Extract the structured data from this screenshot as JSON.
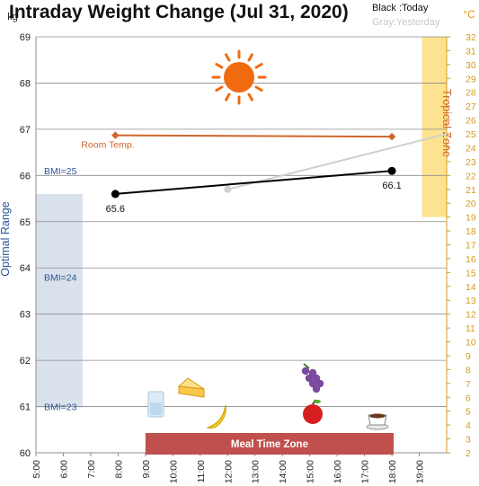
{
  "title": "Intraday Weight Change (Jul 31, 2020)",
  "legend": {
    "today": "Black :Today",
    "yesterday": "Gray:Yesterday"
  },
  "colors": {
    "axis_right": "#d89a1a",
    "room_temp": "#d0652a",
    "tropical": "#fde38f",
    "optimal": "#d9e2ec",
    "optimal_text": "#2d5597",
    "meal": "#c0504d",
    "today": "#000000",
    "yesterday": "#d0d0d0",
    "sun": "#f06a10"
  },
  "chart_data": {
    "type": "line",
    "title": "Intraday Weight Change (Jul 31, 2020)",
    "y_left": {
      "unit": "kg",
      "range": [
        60,
        69
      ],
      "ticks": [
        "60",
        "61",
        "62",
        "63",
        "64",
        "65",
        "66",
        "67",
        "68",
        "69"
      ]
    },
    "y_right": {
      "unit": "°C",
      "range": [
        2,
        32
      ],
      "ticks": [
        "2",
        "3",
        "4",
        "5",
        "6",
        "7",
        "8",
        "9",
        "10",
        "11",
        "12",
        "13",
        "14",
        "15",
        "16",
        "17",
        "18",
        "19",
        "20",
        "21",
        "22",
        "23",
        "24",
        "25",
        "26",
        "27",
        "28",
        "29",
        "30",
        "31",
        "32"
      ]
    },
    "x": {
      "range": [
        5,
        20
      ],
      "ticks": [
        "5:00",
        "6:00",
        "7:00",
        "8:00",
        "9:00",
        "10:00",
        "11:00",
        "12:00",
        "13:00",
        "14:00",
        "15:00",
        "16:00",
        "17:00",
        "18:00",
        "19:00"
      ]
    },
    "series": [
      {
        "name": "Today",
        "axis": "left",
        "points": [
          [
            7.9,
            65.6
          ],
          [
            18.0,
            66.1
          ]
        ],
        "labels": [
          "65.6",
          "66.1"
        ]
      },
      {
        "name": "Yesterday",
        "axis": "left",
        "points": [
          [
            12.0,
            65.7
          ],
          [
            20.0,
            66.9
          ]
        ]
      },
      {
        "name": "Room Temp.",
        "axis": "right",
        "points": [
          [
            7.9,
            24.9
          ],
          [
            18.0,
            24.8
          ]
        ]
      }
    ],
    "bands": {
      "tropical": {
        "label": "Tropical Zone",
        "x_range": [
          19.1,
          20.0
        ],
        "temp_range": [
          19,
          32
        ]
      },
      "optimal": {
        "label": "Optimal Range",
        "x_range": [
          5,
          6.7
        ],
        "weight_range": [
          60.98,
          65.6
        ]
      },
      "meal": {
        "label": "Meal Time Zone",
        "x_range": [
          9.0,
          18.0
        ]
      }
    },
    "bmi": [
      {
        "label": "BMI=25",
        "weight": 66.1
      },
      {
        "label": "BMI=24",
        "weight": 63.8
      },
      {
        "label": "BMI=23",
        "weight": 61.0
      }
    ],
    "annotations": [
      {
        "text": "Room Temp.",
        "near": "room-temp line start"
      }
    ],
    "grid": true
  }
}
